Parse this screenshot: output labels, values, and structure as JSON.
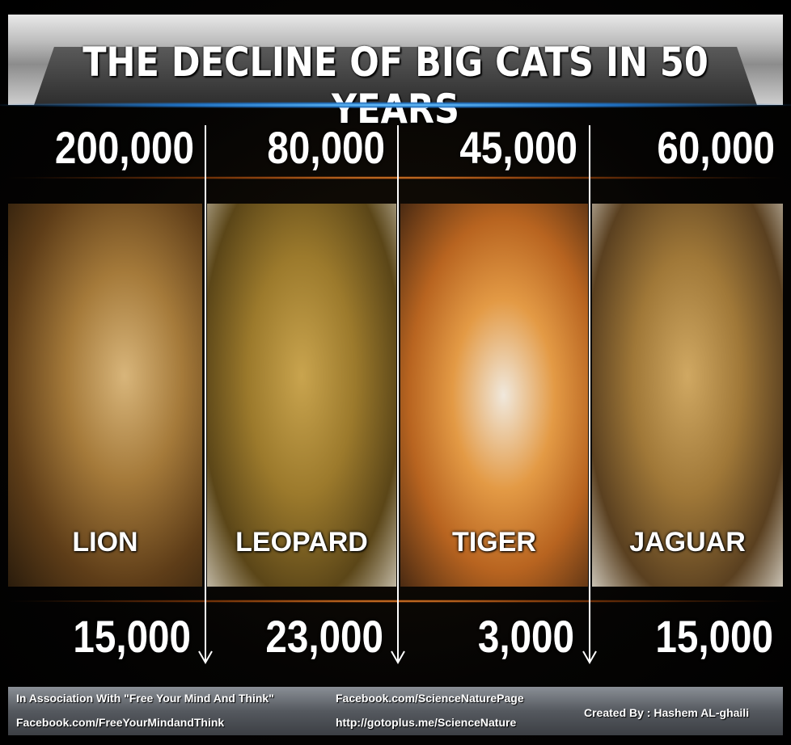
{
  "title": "THE DECLINE OF BIG CATS IN 50 YEARS",
  "cats": [
    {
      "name": "LION",
      "before": "200,000",
      "after": "15,000"
    },
    {
      "name": "LEOPARD",
      "before": "80,000",
      "after": "23,000"
    },
    {
      "name": "TIGER",
      "before": "45,000",
      "after": "3,000"
    },
    {
      "name": "JAGUAR",
      "before": "60,000",
      "after": "15,000"
    }
  ],
  "footer": {
    "association": "In Association With \"Free Your Mind And Think\"",
    "association_link": "Facebook.com/FreeYourMindandThink",
    "facebook": "Facebook.com/ScienceNaturePage",
    "website": "http://gotoplus.me/ScienceNature",
    "credit": "Created By : Hashem AL-ghaili"
  }
}
